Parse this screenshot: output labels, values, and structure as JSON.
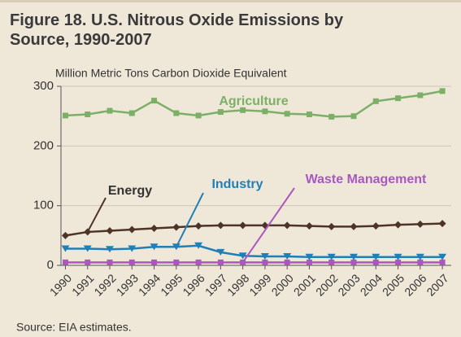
{
  "chart_data": {
    "type": "line",
    "title": "Figure 18. U.S. Nitrous Oxide Emissions by Source, 1990-2007",
    "y_label": "Million Metric Tons Carbon Dioxide Equivalent",
    "source": "Source: EIA estimates.",
    "x": [
      1990,
      1991,
      1992,
      1993,
      1994,
      1995,
      1996,
      1997,
      1998,
      1999,
      2000,
      2001,
      2002,
      2003,
      2004,
      2005,
      2006,
      2007
    ],
    "xlim": [
      1989.8,
      2007.4
    ],
    "ylim": [
      0,
      300
    ],
    "yticks": [
      0,
      100,
      200,
      300
    ],
    "grid": true,
    "series": [
      {
        "name": "Agriculture",
        "color": "#7db067",
        "marker": "square",
        "values": [
          251,
          253,
          259,
          255,
          276,
          255,
          251,
          257,
          260,
          258,
          254,
          253,
          249,
          250,
          275,
          280,
          285,
          292
        ]
      },
      {
        "name": "Energy",
        "color": "#4e3426",
        "marker": "diamond",
        "values": [
          50,
          56,
          58,
          60,
          62,
          64,
          66,
          67,
          67,
          67,
          67,
          66,
          65,
          65,
          66,
          68,
          69,
          70
        ]
      },
      {
        "name": "Industry",
        "color": "#1f7fb6",
        "marker": "triangle",
        "values": [
          28,
          28,
          27,
          28,
          31,
          31,
          33,
          22,
          16,
          15,
          15,
          14,
          14,
          14,
          14,
          14,
          14,
          14
        ]
      },
      {
        "name": "Waste Management",
        "color": "#a958c0",
        "marker": "square",
        "values": [
          5,
          5,
          5,
          5,
          5,
          5,
          5,
          5,
          5,
          5,
          5,
          5,
          5,
          5,
          5,
          5,
          5,
          5
        ]
      }
    ]
  }
}
